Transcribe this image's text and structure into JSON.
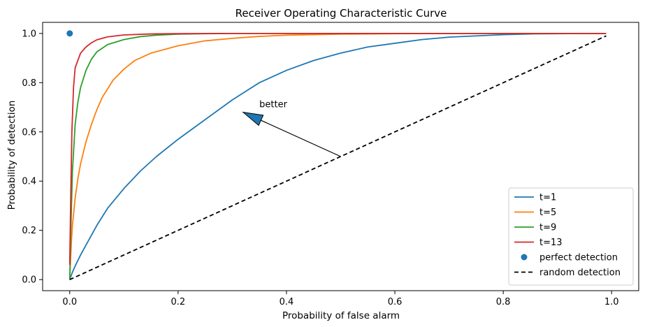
{
  "chart_data": {
    "type": "line",
    "title": "Receiver Operating Characteristic Curve",
    "xlabel": "Probability of false alarm",
    "ylabel": "Probability of detection",
    "xlim": [
      -0.05,
      1.05
    ],
    "ylim": [
      -0.045,
      1.045
    ],
    "xticks": [
      0.0,
      0.2,
      0.4,
      0.6,
      0.8,
      1.0
    ],
    "xtick_labels": [
      "0.0",
      "0.2",
      "0.4",
      "0.6",
      "0.8",
      "1.0"
    ],
    "yticks": [
      0.0,
      0.2,
      0.4,
      0.6,
      0.8,
      1.0
    ],
    "ytick_labels": [
      "0.0",
      "0.2",
      "0.4",
      "0.6",
      "0.8",
      "1.0"
    ],
    "grid": false,
    "legend_position": "lower-right",
    "series": [
      {
        "name": "t=1",
        "color": "#1f77b4",
        "kind": "line",
        "x": [
          0,
          0.005,
          0.01,
          0.02,
          0.03,
          0.05,
          0.07,
          0.1,
          0.13,
          0.16,
          0.2,
          0.25,
          0.3,
          0.35,
          0.4,
          0.45,
          0.5,
          0.55,
          0.6,
          0.65,
          0.7,
          0.75,
          0.8,
          0.85,
          0.9,
          0.95,
          0.99
        ],
        "y": [
          0.0,
          0.03,
          0.055,
          0.1,
          0.14,
          0.22,
          0.29,
          0.37,
          0.44,
          0.5,
          0.57,
          0.65,
          0.73,
          0.8,
          0.85,
          0.89,
          0.92,
          0.945,
          0.96,
          0.975,
          0.985,
          0.99,
          0.995,
          0.998,
          0.999,
          1.0,
          1.0
        ]
      },
      {
        "name": "t=5",
        "color": "#ff7f0e",
        "kind": "line",
        "x": [
          0,
          0.003,
          0.005,
          0.01,
          0.015,
          0.02,
          0.03,
          0.04,
          0.05,
          0.06,
          0.08,
          0.1,
          0.12,
          0.15,
          0.2,
          0.25,
          0.3,
          0.35,
          0.4,
          0.5,
          0.6,
          0.7,
          0.8,
          0.9,
          0.99
        ],
        "y": [
          0.0,
          0.15,
          0.22,
          0.33,
          0.41,
          0.47,
          0.56,
          0.63,
          0.69,
          0.74,
          0.81,
          0.855,
          0.89,
          0.92,
          0.95,
          0.97,
          0.98,
          0.988,
          0.993,
          0.997,
          0.999,
          1.0,
          1.0,
          1.0,
          1.0
        ]
      },
      {
        "name": "t=9",
        "color": "#2ca02c",
        "kind": "line",
        "x": [
          0,
          0.002,
          0.005,
          0.01,
          0.015,
          0.02,
          0.03,
          0.04,
          0.05,
          0.07,
          0.1,
          0.13,
          0.16,
          0.2,
          0.25,
          0.3,
          0.4,
          0.5,
          0.7,
          0.99
        ],
        "y": [
          0.0,
          0.2,
          0.44,
          0.63,
          0.72,
          0.78,
          0.85,
          0.895,
          0.925,
          0.955,
          0.975,
          0.987,
          0.993,
          0.997,
          0.999,
          1.0,
          1.0,
          1.0,
          1.0,
          1.0
        ]
      },
      {
        "name": "t=13",
        "color": "#d62728",
        "kind": "line",
        "x": [
          0,
          0.002,
          0.004,
          0.007,
          0.01,
          0.015,
          0.02,
          0.03,
          0.04,
          0.05,
          0.07,
          0.1,
          0.15,
          0.2,
          0.3,
          0.5,
          0.7,
          0.99
        ],
        "y": [
          0.06,
          0.35,
          0.6,
          0.78,
          0.86,
          0.89,
          0.92,
          0.945,
          0.962,
          0.974,
          0.986,
          0.994,
          0.998,
          0.999,
          1.0,
          1.0,
          1.0,
          1.0
        ]
      },
      {
        "name": "perfect detection",
        "color": "#1f77b4",
        "kind": "scatter",
        "x": [
          0.0
        ],
        "y": [
          1.0
        ]
      },
      {
        "name": "random detection",
        "color": "#000000",
        "kind": "dashed",
        "x": [
          0.0,
          0.99
        ],
        "y": [
          0.0,
          0.99
        ]
      }
    ],
    "annotations": [
      {
        "text": "better",
        "text_x": 0.35,
        "text_y": 0.7,
        "arrow_from": [
          0.5,
          0.5
        ],
        "arrow_to": [
          0.32,
          0.68
        ]
      }
    ]
  }
}
